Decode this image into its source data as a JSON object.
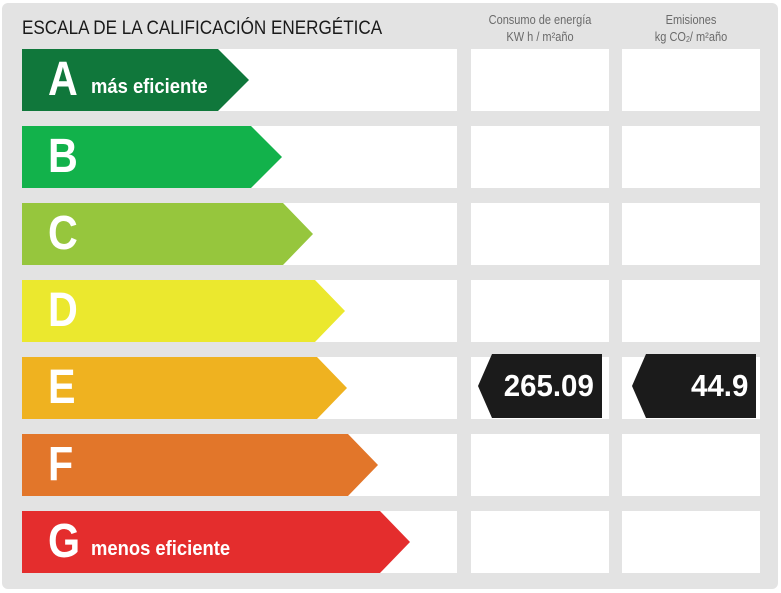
{
  "title": "ESCALA DE LA CALIFICACIÓN ENERGÉTICA",
  "columns": {
    "consumo": {
      "line1": "Consumo de energía",
      "line2": "KW h / m²año"
    },
    "emisiones": {
      "line1": "Emisiones",
      "line2_pre": "kg CO",
      "line2_sub": "2",
      "line2_post": "/ m²año"
    }
  },
  "ratings": [
    {
      "letter": "A",
      "label": "más eficiente",
      "color": "#10773b"
    },
    {
      "letter": "B",
      "label": "",
      "color": "#12b24b"
    },
    {
      "letter": "C",
      "label": "",
      "color": "#96c63d"
    },
    {
      "letter": "D",
      "label": "",
      "color": "#ebe82e"
    },
    {
      "letter": "E",
      "label": "",
      "color": "#efb220"
    },
    {
      "letter": "F",
      "label": "",
      "color": "#e2762a"
    },
    {
      "letter": "G",
      "label": "menos eficiente",
      "color": "#e42d2d"
    }
  ],
  "current": {
    "rating": "E",
    "consumo": "265.09",
    "emisiones": "44.9",
    "marker_color": "#1b1b1b"
  }
}
